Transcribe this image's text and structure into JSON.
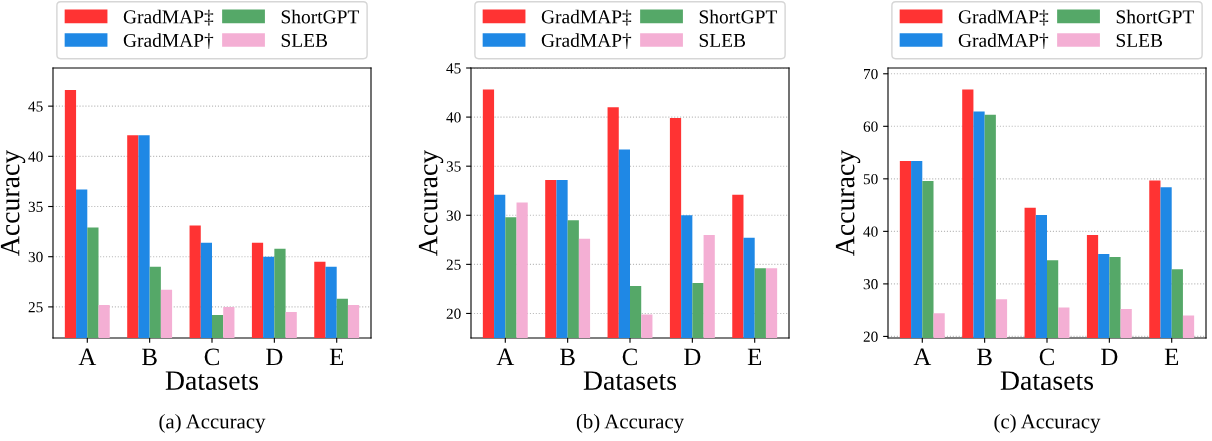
{
  "chart_data": [
    {
      "type": "bar",
      "categories": [
        "A",
        "B",
        "C",
        "D",
        "E"
      ],
      "xlabel": "Datasets",
      "ylabel": "Accuracy",
      "ylim": [
        21.9,
        48.8
      ],
      "yticks": [
        25,
        30,
        35,
        40,
        45
      ],
      "grid": "y",
      "legend": "top",
      "annotations": [
        "(a) Accuracy"
      ],
      "series": [
        {
          "name": "GradMAP‡",
          "color": "#ff3333",
          "values": [
            46.6,
            42.1,
            33.1,
            31.4,
            29.5
          ]
        },
        {
          "name": "GradMAP†",
          "color": "#1f88e5",
          "values": [
            36.7,
            42.1,
            31.4,
            30.0,
            29.0
          ]
        },
        {
          "name": "ShortGPT",
          "color": "#55a868",
          "values": [
            32.9,
            29.0,
            24.2,
            30.8,
            25.8
          ]
        },
        {
          "name": "SLEB",
          "color": "#f4afd4",
          "values": [
            25.2,
            26.7,
            25.0,
            24.5,
            25.2
          ]
        }
      ]
    },
    {
      "type": "bar",
      "categories": [
        "A",
        "B",
        "C",
        "D",
        "E"
      ],
      "xlabel": "Datasets",
      "ylabel": "Accuracy",
      "ylim": [
        17.5,
        45
      ],
      "yticks": [
        20,
        25,
        30,
        35,
        40,
        45
      ],
      "grid": "y",
      "legend": "top",
      "annotations": [
        "(b) Accuracy"
      ],
      "series": [
        {
          "name": "GradMAP‡",
          "color": "#ff3333",
          "values": [
            42.8,
            33.6,
            41.0,
            39.9,
            32.1
          ]
        },
        {
          "name": "GradMAP†",
          "color": "#1f88e5",
          "values": [
            32.1,
            33.6,
            36.7,
            30.0,
            27.7
          ]
        },
        {
          "name": "ShortGPT",
          "color": "#55a868",
          "values": [
            29.8,
            29.5,
            22.8,
            23.1,
            24.6
          ]
        },
        {
          "name": "SLEB",
          "color": "#f4afd4",
          "values": [
            31.3,
            27.6,
            19.9,
            28.0,
            24.6
          ]
        }
      ]
    },
    {
      "type": "bar",
      "categories": [
        "A",
        "B",
        "C",
        "D",
        "E"
      ],
      "xlabel": "Datasets",
      "ylabel": "Accuracy",
      "ylim": [
        19.7,
        71.1
      ],
      "yticks": [
        20,
        30,
        40,
        50,
        60,
        70
      ],
      "grid": "y",
      "legend": "top",
      "annotations": [
        "(c) Accuracy"
      ],
      "series": [
        {
          "name": "GradMAP‡",
          "color": "#ff3333",
          "values": [
            53.4,
            67.0,
            44.5,
            39.3,
            49.7
          ]
        },
        {
          "name": "GradMAP†",
          "color": "#1f88e5",
          "values": [
            53.4,
            62.8,
            43.1,
            35.7,
            48.4
          ]
        },
        {
          "name": "ShortGPT",
          "color": "#55a868",
          "values": [
            49.6,
            62.2,
            34.5,
            35.1,
            32.8
          ]
        },
        {
          "name": "SLEB",
          "color": "#f4afd4",
          "values": [
            24.4,
            27.1,
            25.5,
            25.2,
            24.0
          ]
        }
      ]
    }
  ]
}
